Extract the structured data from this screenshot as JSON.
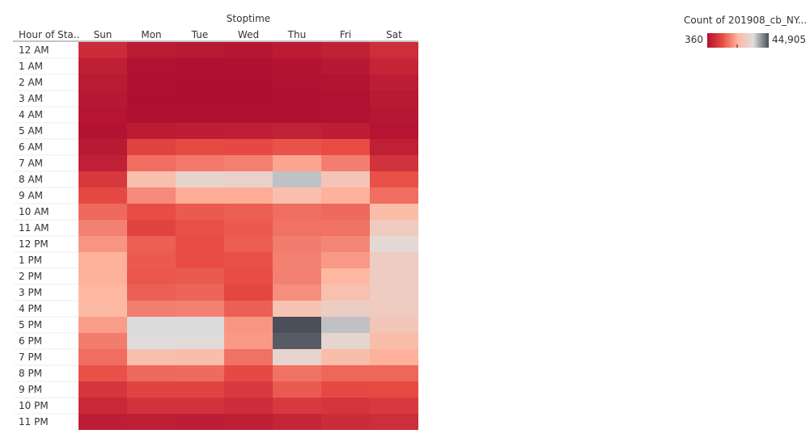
{
  "chart_data": {
    "type": "heatmap",
    "title": "",
    "xlabel": "Stoptime",
    "ylabel": "Hour of Sta..",
    "columns": [
      "Sun",
      "Mon",
      "Tue",
      "Wed",
      "Thu",
      "Fri",
      "Sat"
    ],
    "rows": [
      "12 AM",
      "1 AM",
      "2 AM",
      "3 AM",
      "4 AM",
      "5 AM",
      "6 AM",
      "7 AM",
      "8 AM",
      "9 AM",
      "10 AM",
      "11 AM",
      "12 PM",
      "1 PM",
      "2 PM",
      "3 PM",
      "4 PM",
      "5 PM",
      "6 PM",
      "7 PM",
      "8 PM",
      "9 PM",
      "10 PM",
      "11 PM"
    ],
    "values": [
      [
        5500,
        2500,
        2000,
        1500,
        2600,
        3600,
        6000
      ],
      [
        3200,
        700,
        600,
        600,
        1000,
        1800,
        4200
      ],
      [
        2400,
        500,
        400,
        400,
        700,
        1100,
        3000
      ],
      [
        1800,
        400,
        360,
        360,
        500,
        800,
        2200
      ],
      [
        1300,
        500,
        500,
        500,
        600,
        700,
        1600
      ],
      [
        900,
        2500,
        3000,
        3200,
        3700,
        2900,
        1300
      ],
      [
        2200,
        9800,
        11200,
        11000,
        12200,
        11300,
        3400
      ],
      [
        3300,
        15000,
        16200,
        16800,
        20800,
        16700,
        6800
      ],
      [
        7800,
        25000,
        30500,
        30000,
        36000,
        26500,
        12000
      ],
      [
        11000,
        18000,
        21500,
        21500,
        25000,
        22000,
        15000
      ],
      [
        14500,
        11500,
        13000,
        13500,
        15000,
        14500,
        24000
      ],
      [
        17000,
        10000,
        12000,
        12800,
        15400,
        15500,
        28000
      ],
      [
        19000,
        13500,
        11500,
        13300,
        16500,
        17500,
        32000
      ],
      [
        22000,
        13000,
        11300,
        12000,
        17000,
        19500,
        28500
      ],
      [
        22000,
        12500,
        13000,
        11500,
        17000,
        23000,
        28500
      ],
      [
        23000,
        13500,
        14000,
        10500,
        18500,
        25500,
        28500
      ],
      [
        23500,
        16700,
        17000,
        13500,
        26000,
        29000,
        28000
      ],
      [
        20000,
        34000,
        34000,
        19000,
        44905,
        36000,
        27000
      ],
      [
        16500,
        33000,
        33000,
        19500,
        44000,
        31000,
        24500
      ],
      [
        15000,
        25000,
        24500,
        15500,
        31000,
        24500,
        22000
      ],
      [
        12000,
        14500,
        14700,
        11000,
        15500,
        14300,
        14300
      ],
      [
        7500,
        10000,
        10000,
        8000,
        13000,
        11000,
        11200
      ],
      [
        5000,
        6800,
        6800,
        5800,
        8200,
        7500,
        8200
      ],
      [
        3000,
        3200,
        3000,
        3200,
        4500,
        5600,
        6000
      ]
    ],
    "color_range": [
      360,
      44905
    ],
    "color_stops": [
      "#b01030",
      "#e84c44",
      "#ffb7a0",
      "#dedede",
      "#4a4f5a"
    ],
    "legend": {
      "title": "Count of 201908_cb_NY...",
      "min_label": "360",
      "max_label": "44,905",
      "placement": "top-right"
    }
  }
}
